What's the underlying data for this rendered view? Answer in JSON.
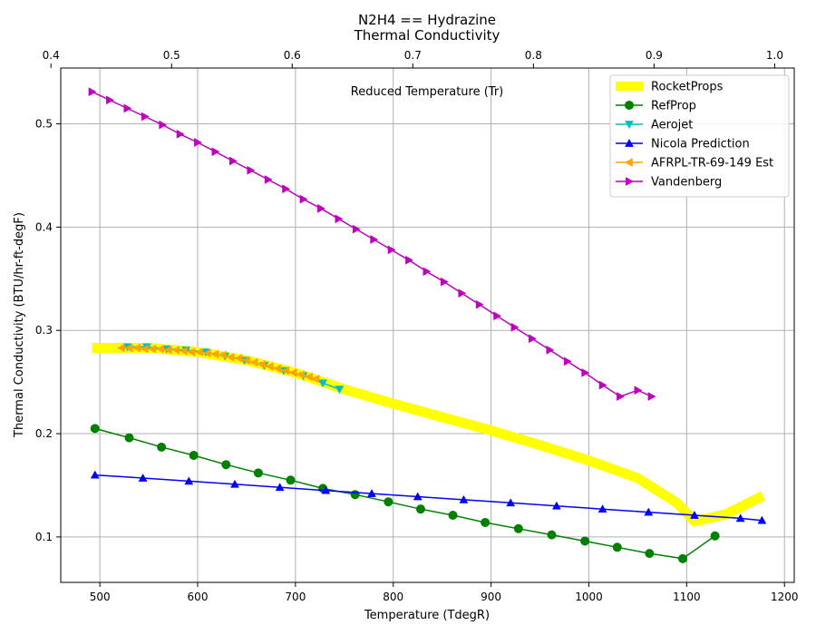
{
  "chart_data": {
    "type": "line",
    "title": "N2H4 == Hydrazine",
    "subtitle": "Thermal Conductivity",
    "xlabel": "Temperature (TdegR)",
    "ylabel": "Thermal Conductivity (BTU/hr-ft-degF)",
    "top_xlabel": "Reduced Temperature (Tr)",
    "xlim": [
      460,
      1210
    ],
    "ylim": [
      0.056,
      0.554
    ],
    "top_xlim": [
      0.4,
      1.0
    ],
    "top_x_at_bottom": [
      450,
      1190
    ],
    "xticks": [
      "500",
      "600",
      "700",
      "800",
      "900",
      "1000",
      "1100",
      "1200"
    ],
    "yticks": [
      "0.1",
      "0.2",
      "0.3",
      "0.4",
      "0.5"
    ],
    "top_xticks": [
      "0.4",
      "0.5",
      "0.6",
      "0.7",
      "0.8",
      "0.9",
      "1.0"
    ],
    "grid": true,
    "legend_position": "top-right",
    "series": [
      {
        "name": "RocketProps",
        "color": "#ffff00",
        "marker": "none",
        "x": [
          492,
          550,
          600,
          650,
          700,
          750,
          800,
          850,
          900,
          950,
          1000,
          1050,
          1090,
          1108,
          1140,
          1178
        ],
        "y": [
          0.283,
          0.283,
          0.279,
          0.271,
          0.259,
          0.243,
          0.229,
          0.216,
          0.203,
          0.189,
          0.174,
          0.157,
          0.133,
          0.115,
          0.122,
          0.14
        ]
      },
      {
        "name": "RefProp",
        "color": "#008000",
        "marker": "circle",
        "x": [
          495,
          530,
          563,
          596,
          629,
          662,
          695,
          728,
          761,
          795,
          828,
          861,
          894,
          928,
          962,
          996,
          1029,
          1062,
          1096,
          1129
        ],
        "y": [
          0.205,
          0.196,
          0.187,
          0.179,
          0.17,
          0.162,
          0.155,
          0.147,
          0.141,
          0.134,
          0.127,
          0.121,
          0.114,
          0.108,
          0.102,
          0.096,
          0.09,
          0.084,
          0.079,
          0.101
        ]
      },
      {
        "name": "Aerojet",
        "color": "#00bfbf",
        "marker": "triangle-down",
        "x": [
          528,
          548,
          568,
          588,
          608,
          628,
          648,
          668,
          688,
          708,
          728,
          745
        ],
        "y": [
          0.284,
          0.284,
          0.282,
          0.281,
          0.279,
          0.275,
          0.271,
          0.266,
          0.261,
          0.256,
          0.249,
          0.243
        ]
      },
      {
        "name": "Nicola Prediction",
        "color": "#0000ff",
        "marker": "triangle-up",
        "x": [
          495,
          544,
          591,
          638,
          684,
          731,
          778,
          825,
          872,
          920,
          967,
          1014,
          1061,
          1108,
          1155,
          1177
        ],
        "y": [
          0.16,
          0.157,
          0.154,
          0.151,
          0.148,
          0.145,
          0.142,
          0.139,
          0.136,
          0.133,
          0.13,
          0.127,
          0.124,
          0.121,
          0.118,
          0.116
        ]
      },
      {
        "name": "AFRPL-TR-69-149 Est",
        "color": "#ffa500",
        "marker": "triangle-left",
        "x": [
          522,
          530,
          538,
          546,
          554,
          562,
          570,
          578,
          586,
          594,
          602,
          610,
          618,
          626,
          634,
          642,
          650,
          658,
          666,
          674,
          682,
          690,
          698,
          706,
          714,
          721
        ],
        "y": [
          0.283,
          0.283,
          0.283,
          0.282,
          0.282,
          0.282,
          0.281,
          0.281,
          0.28,
          0.279,
          0.279,
          0.278,
          0.277,
          0.276,
          0.274,
          0.273,
          0.271,
          0.269,
          0.267,
          0.265,
          0.263,
          0.261,
          0.259,
          0.257,
          0.255,
          0.253
        ]
      },
      {
        "name": "Vandenberg",
        "color": "#bf00bf",
        "marker": "triangle-right",
        "x": [
          492,
          510,
          528,
          546,
          564,
          582,
          600,
          618,
          636,
          654,
          672,
          690,
          708,
          726,
          744,
          762,
          780,
          798,
          816,
          834,
          852,
          870,
          888,
          906,
          924,
          942,
          960,
          978,
          996,
          1014,
          1032,
          1050,
          1064
        ],
        "y": [
          0.531,
          0.523,
          0.515,
          0.507,
          0.499,
          0.49,
          0.482,
          0.473,
          0.464,
          0.455,
          0.446,
          0.437,
          0.427,
          0.418,
          0.408,
          0.398,
          0.388,
          0.378,
          0.368,
          0.357,
          0.347,
          0.336,
          0.325,
          0.314,
          0.303,
          0.292,
          0.281,
          0.27,
          0.259,
          0.247,
          0.236,
          0.242,
          0.236
        ]
      }
    ]
  }
}
